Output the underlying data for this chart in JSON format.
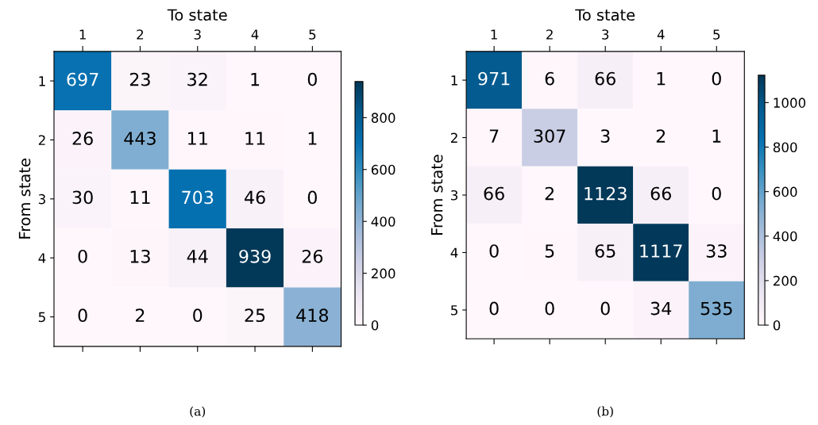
{
  "chart_data": [
    {
      "type": "heatmap",
      "xlabel": "To state",
      "ylabel": "From state",
      "categories": [
        "1",
        "2",
        "3",
        "4",
        "5"
      ],
      "y_categories": [
        "1",
        "2",
        "3",
        "4",
        "5"
      ],
      "cells": [
        [
          697,
          23,
          32,
          1,
          0
        ],
        [
          26,
          443,
          11,
          11,
          1
        ],
        [
          30,
          11,
          703,
          46,
          0
        ],
        [
          0,
          13,
          44,
          939,
          26
        ],
        [
          0,
          2,
          0,
          25,
          418
        ]
      ],
      "clim": [
        0,
        939
      ],
      "cticks": [
        0,
        200,
        400,
        600,
        800
      ],
      "data_labels": true,
      "annotations": [
        "(a)"
      ]
    },
    {
      "type": "heatmap",
      "xlabel": "To state",
      "ylabel": "From state",
      "categories": [
        "1",
        "2",
        "3",
        "4",
        "5"
      ],
      "y_categories": [
        "1",
        "2",
        "3",
        "4",
        "5"
      ],
      "cells": [
        [
          971,
          6,
          66,
          1,
          0
        ],
        [
          7,
          307,
          3,
          2,
          1
        ],
        [
          66,
          2,
          1123,
          66,
          0
        ],
        [
          0,
          5,
          65,
          1117,
          33
        ],
        [
          0,
          0,
          0,
          34,
          535
        ]
      ],
      "clim": [
        0,
        1123
      ],
      "cticks": [
        0,
        200,
        400,
        600,
        800,
        1000
      ],
      "data_labels": true,
      "annotations": [
        "(b)"
      ]
    }
  ]
}
